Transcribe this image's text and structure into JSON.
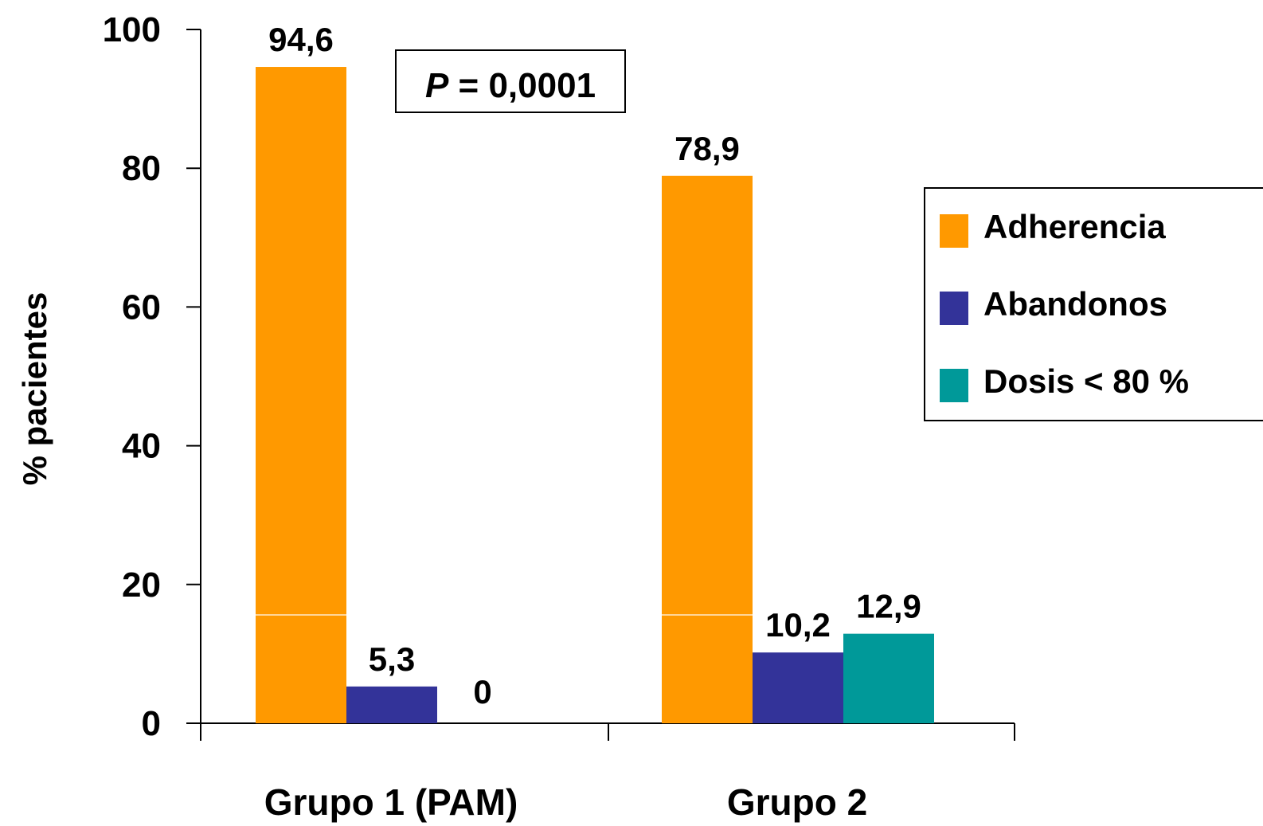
{
  "chart_data": {
    "type": "bar",
    "categories": [
      "Grupo 1 (PAM)",
      "Grupo 2"
    ],
    "series": [
      {
        "name": "Adherencia",
        "values": [
          94.6,
          78.9
        ],
        "labels": [
          "94,6",
          "78,9"
        ],
        "color": "#ff9900"
      },
      {
        "name": "Abandonos",
        "values": [
          5.3,
          10.2
        ],
        "labels": [
          "5,3",
          "10,2"
        ],
        "color": "#333399"
      },
      {
        "name": "Dosis < 80 %",
        "values": [
          0,
          12.9
        ],
        "labels": [
          "0",
          "12,9"
        ],
        "color": "#009999"
      }
    ],
    "ylabel": "% pacientes",
    "xlabel": "",
    "ylim": [
      0,
      100
    ],
    "yticks": [
      0,
      20,
      40,
      60,
      80,
      100
    ],
    "ytick_labels": [
      "0",
      "20",
      "40",
      "60",
      "80",
      "100"
    ],
    "annotation": {
      "italic": "P",
      "rest": " = 0,0001"
    },
    "legend_position": "right",
    "grid": false
  }
}
